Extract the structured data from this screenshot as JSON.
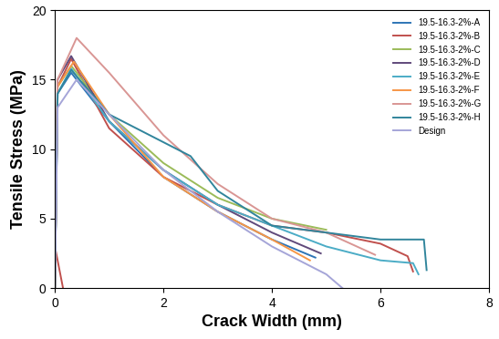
{
  "chart_data": {
    "type": "line",
    "x_label": "Crack Width (mm)",
    "y_label": "Tensile Stress (MPa)",
    "xlim": [
      0,
      8
    ],
    "xticks": [
      0,
      2,
      4,
      6,
      8
    ],
    "ylim": [
      0,
      20
    ],
    "yticks": [
      0,
      5,
      10,
      15,
      20
    ],
    "grid": false,
    "legend": "upper right",
    "series": [
      {
        "name": "19.5-16.3-2%-A",
        "color": "#2E75B6",
        "x": [
          0,
          0.05,
          0.3,
          1,
          2,
          3,
          4,
          4.8
        ],
        "values": [
          0,
          14,
          15.5,
          12,
          8,
          5.5,
          3.5,
          2.2
        ]
      },
      {
        "name": "19.5-16.3-2%-B",
        "color": "#C0504D",
        "x": [
          0,
          0.15,
          null,
          0,
          0.05,
          0.3,
          1,
          2,
          3,
          4,
          5,
          6,
          6.5,
          6.6
        ],
        "values": [
          3,
          0,
          null,
          0,
          14.5,
          16.5,
          11.5,
          8,
          6,
          4.5,
          4,
          3.2,
          2.3,
          1.2
        ]
      },
      {
        "name": "19.5-16.3-2%-C",
        "color": "#9BBB59",
        "x": [
          0,
          0.05,
          0.3,
          1,
          2,
          3,
          4,
          5
        ],
        "values": [
          0,
          14.5,
          16,
          12.5,
          9,
          6.5,
          5,
          4.2
        ]
      },
      {
        "name": "19.5-16.3-2%-D",
        "color": "#604A7B",
        "x": [
          0,
          0.05,
          0.3,
          1,
          2,
          3,
          4,
          4.9
        ],
        "values": [
          0,
          15,
          16.7,
          12,
          8.5,
          6,
          4,
          2.5
        ]
      },
      {
        "name": "19.5-16.3-2%-E",
        "color": "#4BACC6",
        "x": [
          0,
          0.05,
          0.3,
          1,
          2,
          3,
          4,
          5,
          6,
          6.6,
          6.7
        ],
        "values": [
          0,
          14,
          15.8,
          12,
          8.5,
          6,
          4.5,
          3,
          2,
          1.8,
          1
        ]
      },
      {
        "name": "19.5-16.3-2%-F",
        "color": "#F79646",
        "x": [
          0,
          0.05,
          0.35,
          1,
          2,
          3,
          4,
          4.7
        ],
        "values": [
          0,
          14.5,
          16.3,
          12.5,
          8,
          5.5,
          3.5,
          2
        ]
      },
      {
        "name": "19.5-16.3-2%-G",
        "color": "#D99694",
        "x": [
          0,
          0.05,
          0.4,
          1,
          2,
          3,
          4,
          5,
          5.9
        ],
        "values": [
          0,
          15,
          18,
          15.5,
          11,
          7.5,
          5,
          4,
          2.4
        ]
      },
      {
        "name": "19.5-16.3-2%-H",
        "color": "#31859C",
        "x": [
          0,
          0.05,
          0.3,
          1,
          2,
          2.5,
          3,
          4,
          5,
          6,
          6.8,
          6.85
        ],
        "values": [
          0,
          14,
          15.7,
          12.5,
          10.5,
          9.5,
          7,
          4.5,
          4,
          3.5,
          3.5,
          1.3
        ]
      },
      {
        "name": "Design",
        "color": "#A5A5D8",
        "x": [
          0,
          0.05,
          0.4,
          1,
          2,
          3,
          4,
          5,
          5.3
        ],
        "values": [
          0,
          13,
          15,
          12.5,
          8.5,
          5.5,
          3,
          1,
          0
        ]
      }
    ]
  }
}
